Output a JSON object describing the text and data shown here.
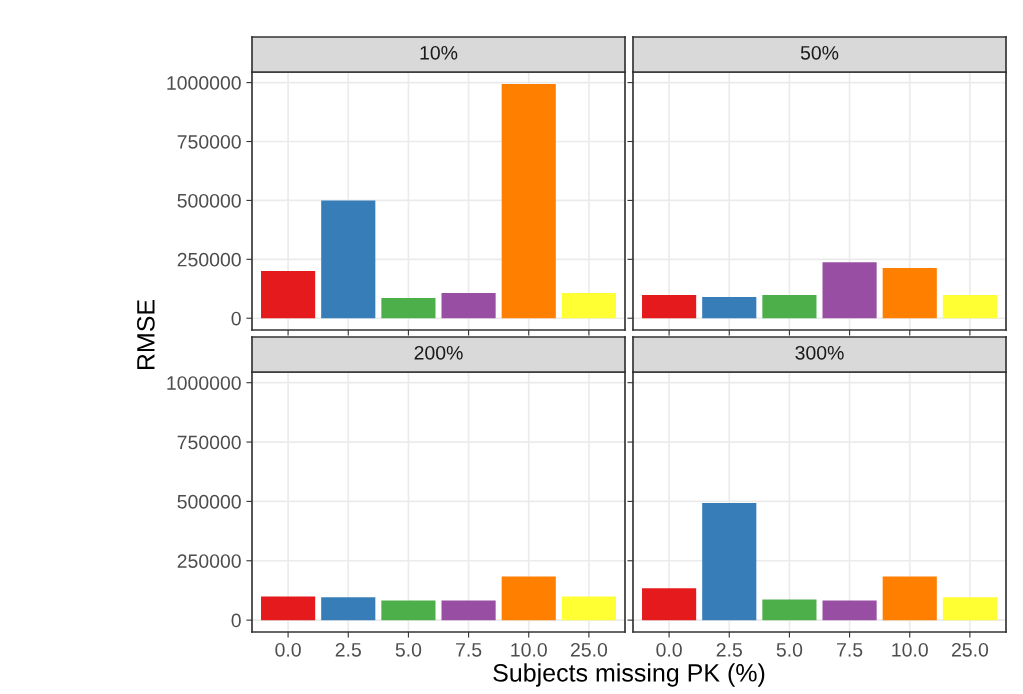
{
  "chart_data": [
    {
      "type": "bar",
      "title": "10%",
      "ylabel": "RMSE",
      "categories": [
        "0.0",
        "2.5",
        "5.0",
        "7.5",
        "10.0",
        "25.0"
      ],
      "values": [
        200000,
        500000,
        86000,
        107000,
        994000,
        107000
      ],
      "colors": [
        "#e41a1c",
        "#377eb8",
        "#4daf4a",
        "#984ea3",
        "#ff7f00",
        "#ffff33"
      ],
      "ylim": [
        -50000,
        1045000
      ],
      "yticks": [
        0,
        250000,
        500000,
        750000,
        1000000
      ],
      "grid": true,
      "tick_labels": "y"
    },
    {
      "type": "bar",
      "title": "50%",
      "categories": [
        "0.0",
        "2.5",
        "5.0",
        "7.5",
        "10.0",
        "25.0"
      ],
      "values": [
        99000,
        90000,
        99000,
        238000,
        213000,
        99000
      ],
      "colors": [
        "#e41a1c",
        "#377eb8",
        "#4daf4a",
        "#984ea3",
        "#ff7f00",
        "#ffff33"
      ],
      "ylim": [
        -50000,
        1045000
      ],
      "yticks": [
        0,
        250000,
        500000,
        750000,
        1000000
      ],
      "grid": true,
      "tick_labels": false
    },
    {
      "type": "bar",
      "title": "200%",
      "categories": [
        "0.0",
        "2.5",
        "5.0",
        "7.5",
        "10.0",
        "25.0"
      ],
      "values": [
        100000,
        96000,
        83000,
        83000,
        184000,
        100000
      ],
      "colors": [
        "#e41a1c",
        "#377eb8",
        "#4daf4a",
        "#984ea3",
        "#ff7f00",
        "#ffff33"
      ],
      "ylim": [
        -50000,
        1045000
      ],
      "yticks": [
        0,
        250000,
        500000,
        750000,
        1000000
      ],
      "grid": true
    },
    {
      "type": "bar",
      "title": "300%",
      "xlabel": "Subjects missing PK (%)",
      "categories": [
        "0.0",
        "2.5",
        "5.0",
        "7.5",
        "10.0",
        "25.0"
      ],
      "values": [
        134000,
        493000,
        87000,
        83000,
        184000,
        96000
      ],
      "colors": [
        "#e41a1c",
        "#377eb8",
        "#4daf4a",
        "#984ea3",
        "#ff7f00",
        "#ffff33"
      ],
      "ylim": [
        -50000,
        1045000
      ],
      "yticks": [
        0,
        250000,
        500000,
        750000,
        1000000
      ],
      "grid": true,
      "tick_labels": "x"
    }
  ]
}
